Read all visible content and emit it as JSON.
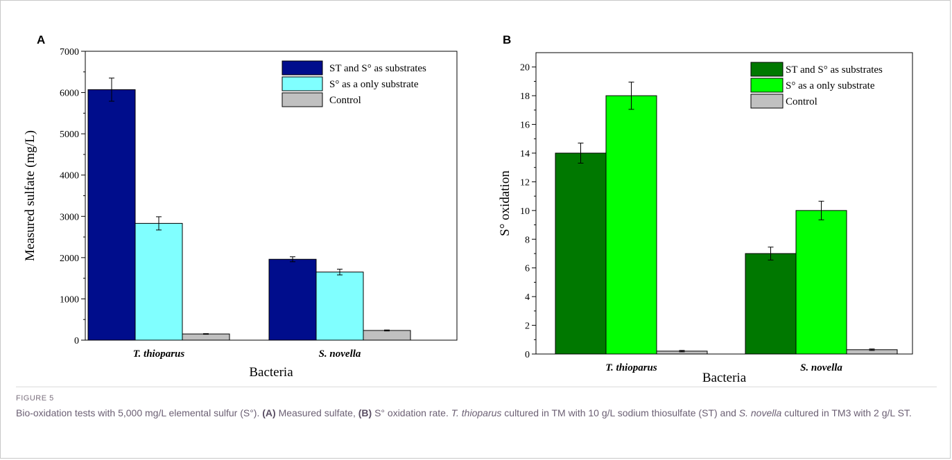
{
  "figure": {
    "label": "FIGURE 5",
    "caption": {
      "p1": "Bio-oxidation tests with 5,000 mg/L elemental sulfur (S°). ",
      "p2": "(A)",
      "p3": " Measured sulfate, ",
      "p4": "(B)",
      "p5": " S° oxidation rate. ",
      "p6": "T. thioparus",
      "p7": " cultured in TM with 10 g/L sodium thiosulfate (ST) and ",
      "p8": "S. novella",
      "p9": " cultured in TM3 with 2 g/L ST."
    }
  },
  "chart_data": [
    {
      "panel": "A",
      "type": "bar",
      "xlabel": "Bacteria",
      "ylabel": "Measured sulfate (mg/L)",
      "ylim": [
        0,
        7000
      ],
      "yticks": [
        0,
        1000,
        2000,
        3000,
        4000,
        5000,
        6000,
        7000
      ],
      "categories": [
        "T. thioparus",
        "S. novella"
      ],
      "legend_position": "top-right",
      "grid": false,
      "series": [
        {
          "name": "ST and S° as substrates",
          "color": "#000d8c",
          "values": [
            6070,
            1960
          ],
          "errors": [
            280,
            60
          ]
        },
        {
          "name": "S° as a only substrate",
          "color": "#80ffff",
          "values": [
            2830,
            1650
          ],
          "errors": [
            160,
            70
          ]
        },
        {
          "name": "Control",
          "color": "#c0c0c0",
          "values": [
            150,
            235
          ],
          "errors": [
            8,
            12
          ]
        }
      ]
    },
    {
      "panel": "B",
      "type": "bar",
      "xlabel": "Bacteria",
      "ylabel": "S° oxidation",
      "ylim": [
        0,
        21
      ],
      "yticks": [
        0,
        2,
        4,
        6,
        8,
        10,
        12,
        14,
        16,
        18,
        20
      ],
      "categories": [
        "T. thioparus",
        "S. novella"
      ],
      "legend_position": "top-right",
      "grid": false,
      "series": [
        {
          "name": "ST and S° as substrates",
          "color": "#007800",
          "values": [
            14,
            7
          ],
          "errors": [
            0.7,
            0.45
          ]
        },
        {
          "name": "S° as a only substrate",
          "color": "#00ff00",
          "values": [
            18,
            10
          ],
          "errors": [
            0.95,
            0.65
          ]
        },
        {
          "name": "Control",
          "color": "#c0c0c0",
          "values": [
            0.2,
            0.3
          ],
          "errors": [
            0.05,
            0.05
          ]
        }
      ]
    }
  ]
}
